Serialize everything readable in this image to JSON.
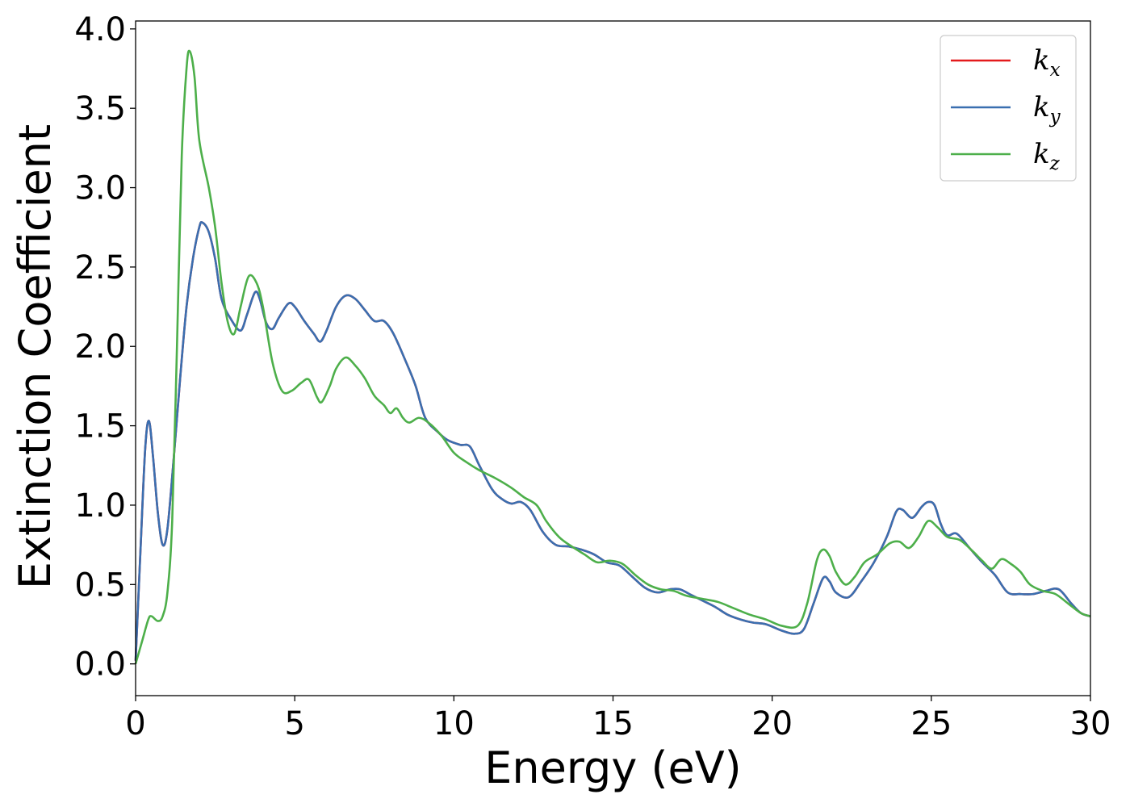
{
  "chart_data": {
    "type": "line",
    "title": "",
    "xlabel": "Energy (eV)",
    "ylabel": "Extinction Coefficient",
    "xlim": [
      0,
      30
    ],
    "ylim": [
      -0.2,
      4.05
    ],
    "grid": false,
    "legend_position": "top-right",
    "x_ticks": [
      0,
      5,
      10,
      15,
      20,
      25,
      30
    ],
    "x_tick_labels": [
      "0",
      "5",
      "10",
      "15",
      "20",
      "25",
      "30"
    ],
    "y_ticks": [
      0.0,
      0.5,
      1.0,
      1.5,
      2.0,
      2.5,
      3.0,
      3.5,
      4.0
    ],
    "y_tick_labels": [
      "0.0",
      "0.5",
      "1.0",
      "1.5",
      "2.0",
      "2.5",
      "3.0",
      "3.5",
      "4.0"
    ],
    "series": [
      {
        "name": "k_x",
        "legend_base": "k",
        "legend_sub": "x",
        "color": "#e41a1c",
        "points": [
          [
            0,
            0.02
          ],
          [
            0.15,
            0.7
          ],
          [
            0.3,
            1.35
          ],
          [
            0.42,
            1.53
          ],
          [
            0.55,
            1.3
          ],
          [
            0.7,
            0.95
          ],
          [
            0.85,
            0.75
          ],
          [
            1.0,
            0.85
          ],
          [
            1.2,
            1.3
          ],
          [
            1.4,
            1.8
          ],
          [
            1.6,
            2.25
          ],
          [
            1.8,
            2.55
          ],
          [
            2.0,
            2.75
          ],
          [
            2.1,
            2.78
          ],
          [
            2.3,
            2.72
          ],
          [
            2.5,
            2.55
          ],
          [
            2.7,
            2.3
          ],
          [
            3.0,
            2.17
          ],
          [
            3.3,
            2.1
          ],
          [
            3.5,
            2.2
          ],
          [
            3.75,
            2.34
          ],
          [
            3.9,
            2.3
          ],
          [
            4.1,
            2.15
          ],
          [
            4.3,
            2.11
          ],
          [
            4.5,
            2.18
          ],
          [
            4.8,
            2.27
          ],
          [
            5.0,
            2.25
          ],
          [
            5.3,
            2.16
          ],
          [
            5.6,
            2.08
          ],
          [
            5.8,
            2.03
          ],
          [
            6.0,
            2.1
          ],
          [
            6.3,
            2.25
          ],
          [
            6.6,
            2.32
          ],
          [
            6.9,
            2.3
          ],
          [
            7.2,
            2.23
          ],
          [
            7.5,
            2.16
          ],
          [
            7.8,
            2.16
          ],
          [
            8.1,
            2.08
          ],
          [
            8.5,
            1.9
          ],
          [
            8.8,
            1.75
          ],
          [
            9.1,
            1.55
          ],
          [
            9.5,
            1.46
          ],
          [
            9.8,
            1.41
          ],
          [
            10.2,
            1.38
          ],
          [
            10.5,
            1.37
          ],
          [
            10.8,
            1.25
          ],
          [
            11.2,
            1.1
          ],
          [
            11.5,
            1.04
          ],
          [
            11.8,
            1.01
          ],
          [
            12.1,
            1.02
          ],
          [
            12.4,
            0.97
          ],
          [
            12.8,
            0.83
          ],
          [
            13.2,
            0.75
          ],
          [
            13.6,
            0.74
          ],
          [
            14.0,
            0.72
          ],
          [
            14.4,
            0.69
          ],
          [
            14.8,
            0.64
          ],
          [
            15.2,
            0.62
          ],
          [
            15.6,
            0.55
          ],
          [
            16.0,
            0.48
          ],
          [
            16.4,
            0.45
          ],
          [
            16.8,
            0.47
          ],
          [
            17.1,
            0.47
          ],
          [
            17.4,
            0.44
          ],
          [
            17.8,
            0.4
          ],
          [
            18.2,
            0.36
          ],
          [
            18.6,
            0.31
          ],
          [
            19.0,
            0.28
          ],
          [
            19.4,
            0.26
          ],
          [
            19.8,
            0.25
          ],
          [
            20.3,
            0.21
          ],
          [
            20.7,
            0.19
          ],
          [
            21.0,
            0.22
          ],
          [
            21.3,
            0.38
          ],
          [
            21.6,
            0.54
          ],
          [
            21.8,
            0.52
          ],
          [
            22.0,
            0.45
          ],
          [
            22.4,
            0.42
          ],
          [
            22.8,
            0.52
          ],
          [
            23.2,
            0.64
          ],
          [
            23.6,
            0.8
          ],
          [
            23.9,
            0.96
          ],
          [
            24.1,
            0.97
          ],
          [
            24.4,
            0.92
          ],
          [
            24.7,
            0.99
          ],
          [
            24.9,
            1.02
          ],
          [
            25.1,
            1.0
          ],
          [
            25.3,
            0.88
          ],
          [
            25.5,
            0.81
          ],
          [
            25.8,
            0.82
          ],
          [
            26.2,
            0.73
          ],
          [
            26.6,
            0.64
          ],
          [
            27.0,
            0.56
          ],
          [
            27.4,
            0.45
          ],
          [
            27.8,
            0.44
          ],
          [
            28.2,
            0.44
          ],
          [
            28.6,
            0.46
          ],
          [
            29.0,
            0.47
          ],
          [
            29.4,
            0.38
          ],
          [
            29.7,
            0.32
          ],
          [
            30,
            0.3
          ]
        ]
      },
      {
        "name": "k_y",
        "legend_base": "k",
        "legend_sub": "y",
        "color": "#3a6fb0",
        "points": [
          [
            0,
            0.02
          ],
          [
            0.15,
            0.7
          ],
          [
            0.3,
            1.35
          ],
          [
            0.42,
            1.53
          ],
          [
            0.55,
            1.3
          ],
          [
            0.7,
            0.95
          ],
          [
            0.85,
            0.75
          ],
          [
            1.0,
            0.85
          ],
          [
            1.2,
            1.3
          ],
          [
            1.4,
            1.8
          ],
          [
            1.6,
            2.25
          ],
          [
            1.8,
            2.55
          ],
          [
            2.0,
            2.75
          ],
          [
            2.1,
            2.78
          ],
          [
            2.3,
            2.72
          ],
          [
            2.5,
            2.55
          ],
          [
            2.7,
            2.3
          ],
          [
            3.0,
            2.17
          ],
          [
            3.3,
            2.1
          ],
          [
            3.5,
            2.2
          ],
          [
            3.75,
            2.34
          ],
          [
            3.9,
            2.3
          ],
          [
            4.1,
            2.15
          ],
          [
            4.3,
            2.11
          ],
          [
            4.5,
            2.18
          ],
          [
            4.8,
            2.27
          ],
          [
            5.0,
            2.25
          ],
          [
            5.3,
            2.16
          ],
          [
            5.6,
            2.08
          ],
          [
            5.8,
            2.03
          ],
          [
            6.0,
            2.1
          ],
          [
            6.3,
            2.25
          ],
          [
            6.6,
            2.32
          ],
          [
            6.9,
            2.3
          ],
          [
            7.2,
            2.23
          ],
          [
            7.5,
            2.16
          ],
          [
            7.8,
            2.16
          ],
          [
            8.1,
            2.08
          ],
          [
            8.5,
            1.9
          ],
          [
            8.8,
            1.75
          ],
          [
            9.1,
            1.55
          ],
          [
            9.5,
            1.46
          ],
          [
            9.8,
            1.41
          ],
          [
            10.2,
            1.38
          ],
          [
            10.5,
            1.37
          ],
          [
            10.8,
            1.25
          ],
          [
            11.2,
            1.1
          ],
          [
            11.5,
            1.04
          ],
          [
            11.8,
            1.01
          ],
          [
            12.1,
            1.02
          ],
          [
            12.4,
            0.97
          ],
          [
            12.8,
            0.83
          ],
          [
            13.2,
            0.75
          ],
          [
            13.6,
            0.74
          ],
          [
            14.0,
            0.72
          ],
          [
            14.4,
            0.69
          ],
          [
            14.8,
            0.64
          ],
          [
            15.2,
            0.62
          ],
          [
            15.6,
            0.55
          ],
          [
            16.0,
            0.48
          ],
          [
            16.4,
            0.45
          ],
          [
            16.8,
            0.47
          ],
          [
            17.1,
            0.47
          ],
          [
            17.4,
            0.44
          ],
          [
            17.8,
            0.4
          ],
          [
            18.2,
            0.36
          ],
          [
            18.6,
            0.31
          ],
          [
            19.0,
            0.28
          ],
          [
            19.4,
            0.26
          ],
          [
            19.8,
            0.25
          ],
          [
            20.3,
            0.21
          ],
          [
            20.7,
            0.19
          ],
          [
            21.0,
            0.22
          ],
          [
            21.3,
            0.38
          ],
          [
            21.6,
            0.54
          ],
          [
            21.8,
            0.52
          ],
          [
            22.0,
            0.45
          ],
          [
            22.4,
            0.42
          ],
          [
            22.8,
            0.52
          ],
          [
            23.2,
            0.64
          ],
          [
            23.6,
            0.8
          ],
          [
            23.9,
            0.96
          ],
          [
            24.1,
            0.97
          ],
          [
            24.4,
            0.92
          ],
          [
            24.7,
            0.99
          ],
          [
            24.9,
            1.02
          ],
          [
            25.1,
            1.0
          ],
          [
            25.3,
            0.88
          ],
          [
            25.5,
            0.81
          ],
          [
            25.8,
            0.82
          ],
          [
            26.2,
            0.73
          ],
          [
            26.6,
            0.64
          ],
          [
            27.0,
            0.56
          ],
          [
            27.4,
            0.45
          ],
          [
            27.8,
            0.44
          ],
          [
            28.2,
            0.44
          ],
          [
            28.6,
            0.46
          ],
          [
            29.0,
            0.47
          ],
          [
            29.4,
            0.38
          ],
          [
            29.7,
            0.32
          ],
          [
            30,
            0.3
          ]
        ]
      },
      {
        "name": "k_z",
        "legend_base": "k",
        "legend_sub": "z",
        "color": "#4daf4a",
        "points": [
          [
            0,
            0.0
          ],
          [
            0.2,
            0.14
          ],
          [
            0.4,
            0.28
          ],
          [
            0.5,
            0.3
          ],
          [
            0.7,
            0.27
          ],
          [
            0.85,
            0.3
          ],
          [
            1.0,
            0.45
          ],
          [
            1.15,
            0.9
          ],
          [
            1.3,
            2.0
          ],
          [
            1.45,
            3.2
          ],
          [
            1.6,
            3.75
          ],
          [
            1.7,
            3.86
          ],
          [
            1.85,
            3.7
          ],
          [
            2.0,
            3.3
          ],
          [
            2.3,
            3.0
          ],
          [
            2.5,
            2.75
          ],
          [
            2.7,
            2.4
          ],
          [
            2.9,
            2.15
          ],
          [
            3.1,
            2.08
          ],
          [
            3.3,
            2.25
          ],
          [
            3.55,
            2.44
          ],
          [
            3.8,
            2.4
          ],
          [
            4.0,
            2.25
          ],
          [
            4.3,
            1.9
          ],
          [
            4.6,
            1.72
          ],
          [
            4.9,
            1.72
          ],
          [
            5.2,
            1.77
          ],
          [
            5.45,
            1.79
          ],
          [
            5.7,
            1.68
          ],
          [
            5.85,
            1.65
          ],
          [
            6.1,
            1.75
          ],
          [
            6.3,
            1.86
          ],
          [
            6.6,
            1.93
          ],
          [
            6.9,
            1.88
          ],
          [
            7.2,
            1.8
          ],
          [
            7.5,
            1.69
          ],
          [
            7.8,
            1.63
          ],
          [
            8.0,
            1.58
          ],
          [
            8.2,
            1.61
          ],
          [
            8.4,
            1.55
          ],
          [
            8.6,
            1.52
          ],
          [
            8.9,
            1.55
          ],
          [
            9.2,
            1.52
          ],
          [
            9.6,
            1.44
          ],
          [
            10.0,
            1.33
          ],
          [
            10.4,
            1.27
          ],
          [
            10.8,
            1.22
          ],
          [
            11.3,
            1.17
          ],
          [
            11.8,
            1.11
          ],
          [
            12.2,
            1.05
          ],
          [
            12.6,
            1.0
          ],
          [
            12.9,
            0.9
          ],
          [
            13.3,
            0.8
          ],
          [
            13.7,
            0.74
          ],
          [
            14.1,
            0.69
          ],
          [
            14.5,
            0.64
          ],
          [
            14.9,
            0.65
          ],
          [
            15.3,
            0.63
          ],
          [
            15.7,
            0.56
          ],
          [
            16.1,
            0.5
          ],
          [
            16.5,
            0.47
          ],
          [
            16.9,
            0.46
          ],
          [
            17.3,
            0.43
          ],
          [
            17.8,
            0.41
          ],
          [
            18.3,
            0.39
          ],
          [
            18.8,
            0.35
          ],
          [
            19.3,
            0.31
          ],
          [
            19.8,
            0.28
          ],
          [
            20.3,
            0.24
          ],
          [
            20.8,
            0.24
          ],
          [
            21.1,
            0.38
          ],
          [
            21.4,
            0.65
          ],
          [
            21.6,
            0.72
          ],
          [
            21.8,
            0.68
          ],
          [
            22.0,
            0.58
          ],
          [
            22.3,
            0.5
          ],
          [
            22.6,
            0.55
          ],
          [
            22.9,
            0.64
          ],
          [
            23.3,
            0.69
          ],
          [
            23.7,
            0.76
          ],
          [
            24.0,
            0.77
          ],
          [
            24.3,
            0.73
          ],
          [
            24.6,
            0.8
          ],
          [
            24.9,
            0.9
          ],
          [
            25.2,
            0.86
          ],
          [
            25.5,
            0.8
          ],
          [
            25.9,
            0.78
          ],
          [
            26.3,
            0.71
          ],
          [
            26.6,
            0.65
          ],
          [
            26.9,
            0.6
          ],
          [
            27.2,
            0.66
          ],
          [
            27.5,
            0.63
          ],
          [
            27.8,
            0.58
          ],
          [
            28.1,
            0.5
          ],
          [
            28.5,
            0.46
          ],
          [
            28.9,
            0.44
          ],
          [
            29.3,
            0.38
          ],
          [
            29.7,
            0.32
          ],
          [
            30,
            0.3
          ]
        ]
      }
    ]
  }
}
